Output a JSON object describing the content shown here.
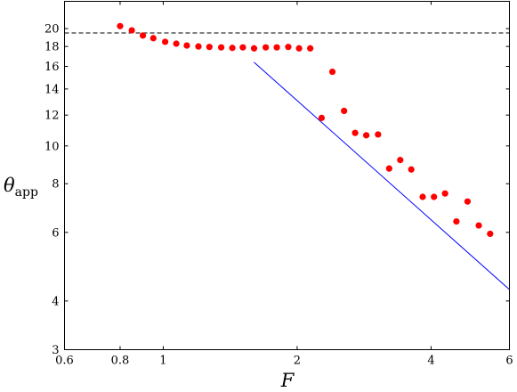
{
  "chart_data": {
    "type": "scatter",
    "title": "",
    "xlabel": "F",
    "ylabel_main": "θ",
    "ylabel_sub": "app",
    "xscale": "log",
    "yscale": "log",
    "xlim": [
      0.6,
      6
    ],
    "ylim": [
      3,
      23.5
    ],
    "xticks": [
      {
        "value": 0.6,
        "label": "0.6"
      },
      {
        "value": 0.8,
        "label": "0.8"
      },
      {
        "value": 1,
        "label": "1"
      },
      {
        "value": 2,
        "label": "2"
      },
      {
        "value": 4,
        "label": "4"
      },
      {
        "value": 6,
        "label": "6"
      }
    ],
    "yticks": [
      {
        "value": 3,
        "label": "3"
      },
      {
        "value": 4,
        "label": "4"
      },
      {
        "value": 6,
        "label": "6"
      },
      {
        "value": 8,
        "label": "8"
      },
      {
        "value": 10,
        "label": "10"
      },
      {
        "value": 12,
        "label": "12"
      },
      {
        "value": 14,
        "label": "14"
      },
      {
        "value": 16,
        "label": "16"
      },
      {
        "value": 18,
        "label": "18"
      },
      {
        "value": 20,
        "label": "20"
      }
    ],
    "grid": false,
    "legend": "none",
    "series": [
      {
        "style": "points",
        "color": "#ff0000",
        "points": [
          {
            "x": 0.8,
            "y": 20.3
          },
          {
            "x": 0.85,
            "y": 19.8
          },
          {
            "x": 0.9,
            "y": 19.2
          },
          {
            "x": 0.95,
            "y": 18.9
          },
          {
            "x": 1.01,
            "y": 18.5
          },
          {
            "x": 1.07,
            "y": 18.3
          },
          {
            "x": 1.13,
            "y": 18.1
          },
          {
            "x": 1.2,
            "y": 18.0
          },
          {
            "x": 1.27,
            "y": 17.95
          },
          {
            "x": 1.35,
            "y": 17.9
          },
          {
            "x": 1.43,
            "y": 17.85
          },
          {
            "x": 1.51,
            "y": 17.9
          },
          {
            "x": 1.6,
            "y": 17.8
          },
          {
            "x": 1.7,
            "y": 17.9
          },
          {
            "x": 1.8,
            "y": 17.9
          },
          {
            "x": 1.91,
            "y": 17.95
          },
          {
            "x": 2.02,
            "y": 17.8
          },
          {
            "x": 2.14,
            "y": 17.8
          },
          {
            "x": 2.27,
            "y": 11.8
          },
          {
            "x": 2.4,
            "y": 15.5
          },
          {
            "x": 2.55,
            "y": 12.3
          },
          {
            "x": 2.7,
            "y": 10.8
          },
          {
            "x": 2.86,
            "y": 10.65
          },
          {
            "x": 3.04,
            "y": 10.7
          },
          {
            "x": 3.22,
            "y": 8.75
          },
          {
            "x": 3.41,
            "y": 9.2
          },
          {
            "x": 3.61,
            "y": 8.7
          },
          {
            "x": 3.83,
            "y": 7.4
          },
          {
            "x": 4.06,
            "y": 7.4
          },
          {
            "x": 4.3,
            "y": 7.55
          },
          {
            "x": 4.56,
            "y": 6.4
          },
          {
            "x": 4.83,
            "y": 7.2
          },
          {
            "x": 5.12,
            "y": 6.25
          },
          {
            "x": 5.43,
            "y": 5.95
          }
        ]
      },
      {
        "style": "line",
        "color": "#0000ff",
        "points": [
          {
            "x": 1.6,
            "y": 16.4
          },
          {
            "x": 6.0,
            "y": 4.28
          }
        ]
      },
      {
        "style": "dashed-line",
        "color": "#000000",
        "points": [
          {
            "x": 0.6,
            "y": 19.5
          },
          {
            "x": 6.0,
            "y": 19.5
          }
        ]
      }
    ]
  }
}
